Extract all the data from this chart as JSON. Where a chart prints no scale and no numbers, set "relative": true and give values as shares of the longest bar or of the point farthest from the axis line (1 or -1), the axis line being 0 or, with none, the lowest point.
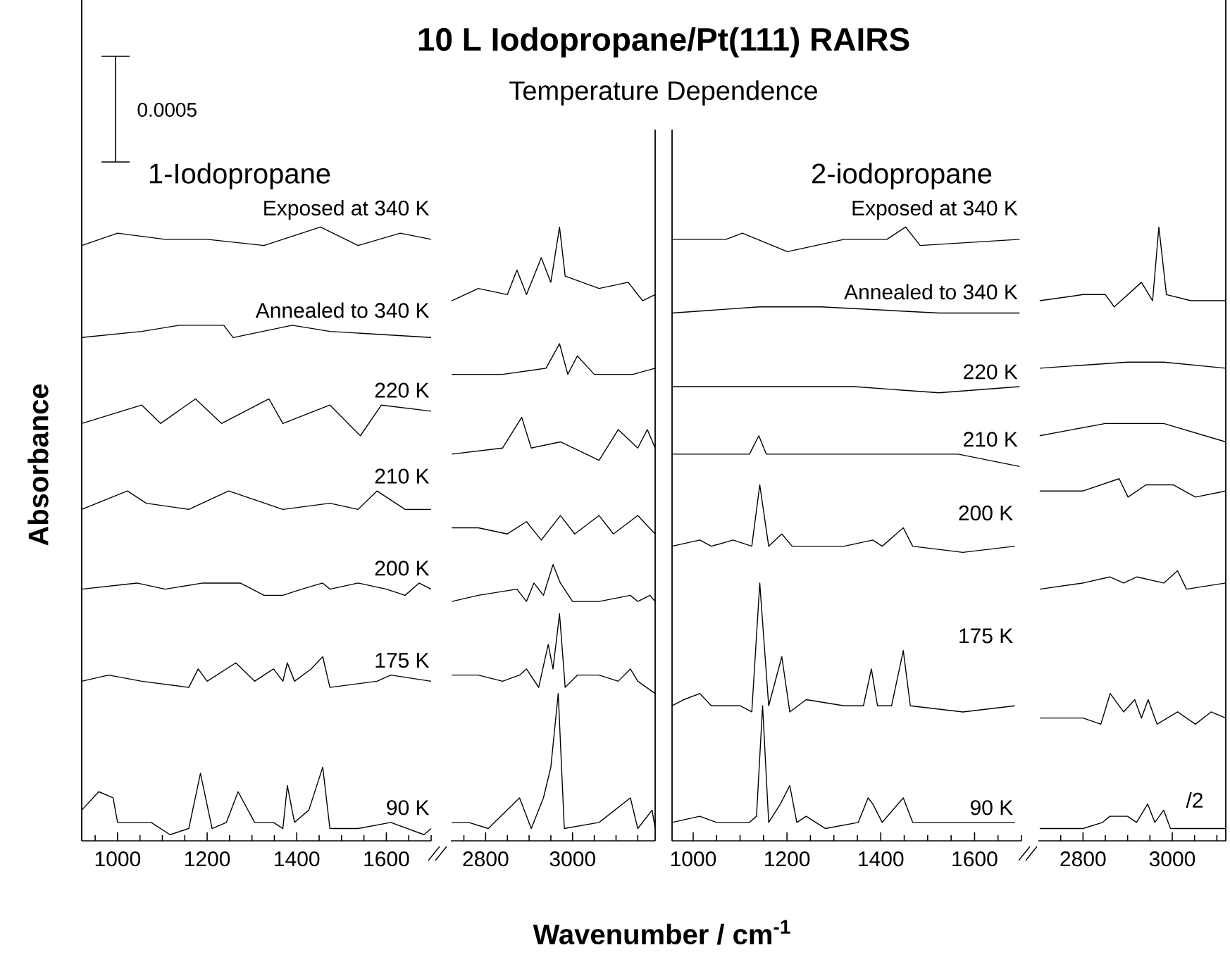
{
  "chart_data": [
    {
      "type": "line",
      "relative": true,
      "title": "10 L Iodopropane/Pt(111) RAIRS",
      "ylabel": "Absorbance",
      "xlabel": "Wavenumber / cm$^{-1}$",
      "annotations": [
        "0.0005",
        "1-Iodopropane",
        "Temperature Dependence"
      ],
      "xlim": [
        920,
        1700
      ],
      "xticks": [
        {
          "value": 950,
          "label": null
        },
        1000,
        {
          "value": 1050,
          "label": null
        },
        {
          "value": 1100,
          "label": null
        },
        {
          "value": 1150,
          "label": null
        },
        1200,
        {
          "value": 1250,
          "label": null
        },
        {
          "value": 1300,
          "label": null
        },
        {
          "value": 1350,
          "label": null
        },
        1400,
        {
          "value": 1450,
          "label": null
        },
        {
          "value": 1500,
          "label": null
        },
        {
          "value": 1550,
          "label": null
        },
        1600,
        {
          "value": 1650,
          "label": null
        },
        {
          "value": 1700,
          "label": null
        }
      ],
      "series": [
        {
          "name": "Exposed at 340 K",
          "color": "#000000",
          "x": [
            920,
            1000,
            1106,
            1200,
            1327,
            1453,
            1537,
            1631,
            1700
          ],
          "values": [
            0.97,
            0.99,
            0.98,
            0.98,
            0.97,
            1.0,
            0.97,
            0.99,
            0.98
          ]
        },
        {
          "name": "Annealed to 340 K",
          "color": "#000000",
          "x": [
            920,
            1054,
            1138,
            1237,
            1258,
            1390,
            1474,
            1700
          ],
          "values": [
            0.82,
            0.83,
            0.84,
            0.84,
            0.82,
            0.84,
            0.83,
            0.82
          ]
        },
        {
          "name": "220 K",
          "color": "#000000",
          "x": [
            920,
            1054,
            1096,
            1174,
            1232,
            1338,
            1369,
            1474,
            1542,
            1589,
            1700
          ],
          "values": [
            0.68,
            0.71,
            0.68,
            0.72,
            0.68,
            0.72,
            0.68,
            0.71,
            0.66,
            0.71,
            0.7
          ]
        },
        {
          "name": "210 K",
          "color": "#000000",
          "x": [
            920,
            1022,
            1064,
            1159,
            1248,
            1369,
            1474,
            1537,
            1579,
            1642,
            1700
          ],
          "values": [
            0.54,
            0.57,
            0.55,
            0.54,
            0.57,
            0.54,
            0.55,
            0.54,
            0.57,
            0.54,
            0.54
          ]
        },
        {
          "name": "200 K",
          "color": "#000000",
          "x": [
            920,
            1043,
            1106,
            1190,
            1274,
            1327,
            1369,
            1411,
            1458,
            1474,
            1537,
            1600,
            1642,
            1673,
            1700
          ],
          "values": [
            0.41,
            0.42,
            0.41,
            0.42,
            0.42,
            0.4,
            0.4,
            0.41,
            0.42,
            0.41,
            0.42,
            0.41,
            0.4,
            0.42,
            0.41
          ]
        },
        {
          "name": "175 K",
          "color": "#000000",
          "x": [
            920,
            980,
            1054,
            1159,
            1180,
            1200,
            1264,
            1306,
            1348,
            1369,
            1379,
            1395,
            1432,
            1458,
            1474,
            1579,
            1610,
            1700
          ],
          "values": [
            0.26,
            0.27,
            0.26,
            0.25,
            0.28,
            0.26,
            0.29,
            0.26,
            0.28,
            0.26,
            0.29,
            0.26,
            0.28,
            0.3,
            0.25,
            0.26,
            0.27,
            0.26
          ]
        },
        {
          "name": "90 K",
          "color": "#000000",
          "x": [
            920,
            958,
            990,
            1000,
            1040,
            1075,
            1117,
            1159,
            1185,
            1211,
            1243,
            1269,
            1306,
            1348,
            1369,
            1379,
            1395,
            1427,
            1458,
            1474,
            1537,
            1610,
            1684,
            1700
          ],
          "values": [
            0.05,
            0.08,
            0.07,
            0.03,
            0.03,
            0.03,
            0.01,
            0.02,
            0.11,
            0.02,
            0.03,
            0.08,
            0.03,
            0.03,
            0.02,
            0.09,
            0.03,
            0.05,
            0.12,
            0.02,
            0.02,
            0.03,
            0.01,
            0.02
          ]
        }
      ]
    },
    {
      "type": "line",
      "relative": true,
      "xlim": [
        2720,
        3190
      ],
      "xticks": [
        {
          "value": 2750,
          "label": null
        },
        2800,
        {
          "value": 2850,
          "label": null
        },
        {
          "value": 2900,
          "label": null
        },
        {
          "value": 2950,
          "label": null
        },
        3000,
        {
          "value": 3050,
          "label": null
        },
        {
          "value": 3100,
          "label": null
        },
        {
          "value": 3150,
          "label": null
        }
      ],
      "series": [
        {
          "color": "#000000",
          "x": [
            2722,
            2783,
            2850,
            2872,
            2894,
            2928,
            2950,
            2970,
            2983,
            3061,
            3128,
            3161,
            3190
          ],
          "values": [
            0.88,
            0.9,
            0.89,
            0.93,
            0.89,
            0.95,
            0.91,
            1.0,
            0.92,
            0.9,
            0.91,
            0.88,
            0.89
          ]
        },
        {
          "color": "#000000",
          "x": [
            2722,
            2839,
            2939,
            2970,
            2989,
            3011,
            3050,
            3139,
            3190
          ],
          "values": [
            0.76,
            0.76,
            0.77,
            0.81,
            0.76,
            0.79,
            0.76,
            0.76,
            0.77
          ]
        },
        {
          "color": "#000000",
          "x": [
            2722,
            2839,
            2883,
            2905,
            2972,
            3061,
            3105,
            3150,
            3172,
            3190
          ],
          "values": [
            0.63,
            0.64,
            0.69,
            0.64,
            0.65,
            0.62,
            0.67,
            0.64,
            0.67,
            0.64
          ]
        },
        {
          "color": "#000000",
          "x": [
            2722,
            2783,
            2850,
            2894,
            2928,
            2972,
            3005,
            3061,
            3094,
            3150,
            3190
          ],
          "values": [
            0.51,
            0.51,
            0.5,
            0.52,
            0.49,
            0.53,
            0.5,
            0.53,
            0.5,
            0.53,
            0.5
          ]
        },
        {
          "color": "#000000",
          "x": [
            2722,
            2783,
            2872,
            2894,
            2911,
            2933,
            2955,
            2972,
            3000,
            3061,
            3133,
            3150,
            3178,
            3190
          ],
          "values": [
            0.39,
            0.4,
            0.41,
            0.39,
            0.42,
            0.4,
            0.45,
            0.42,
            0.39,
            0.39,
            0.4,
            0.39,
            0.4,
            0.39
          ]
        },
        {
          "color": "#000000",
          "x": [
            2722,
            2783,
            2839,
            2878,
            2894,
            2922,
            2944,
            2955,
            2970,
            2983,
            3011,
            3061,
            3105,
            3133,
            3150,
            3190
          ],
          "values": [
            0.27,
            0.27,
            0.26,
            0.27,
            0.28,
            0.25,
            0.32,
            0.28,
            0.37,
            0.25,
            0.27,
            0.27,
            0.26,
            0.28,
            0.26,
            0.24
          ]
        },
        {
          "color": "#000000",
          "x": [
            2722,
            2761,
            2806,
            2878,
            2905,
            2933,
            2950,
            2967,
            2981,
            3061,
            3133,
            3150,
            3183,
            3190
          ],
          "values": [
            0.03,
            0.03,
            0.02,
            0.07,
            0.02,
            0.07,
            0.12,
            0.24,
            0.02,
            0.03,
            0.07,
            0.02,
            0.05,
            0.02
          ]
        }
      ]
    },
    {
      "type": "line",
      "relative": true,
      "annotations": [
        "2-iodopropane"
      ],
      "xlim": [
        955,
        1700
      ],
      "xticks": [
        1000,
        {
          "value": 1050,
          "label": null
        },
        {
          "value": 1100,
          "label": null
        },
        {
          "value": 1150,
          "label": null
        },
        1200,
        {
          "value": 1250,
          "label": null
        },
        {
          "value": 1300,
          "label": null
        },
        {
          "value": 1350,
          "label": null
        },
        1400,
        {
          "value": 1450,
          "label": null
        },
        {
          "value": 1500,
          "label": null
        },
        {
          "value": 1550,
          "label": null
        },
        1600,
        {
          "value": 1650,
          "label": null
        },
        {
          "value": 1700,
          "label": null
        }
      ],
      "series": [
        {
          "name": "Exposed at 340 K",
          "color": "#000000",
          "x": [
            955,
            1070,
            1105,
            1201,
            1322,
            1413,
            1453,
            1484,
            1696
          ],
          "values": [
            0.98,
            0.98,
            0.99,
            0.96,
            0.98,
            0.98,
            1.0,
            0.97,
            0.98
          ]
        },
        {
          "name": "Annealed to 340 K",
          "color": "#000000",
          "x": [
            955,
            1141,
            1272,
            1524,
            1696
          ],
          "values": [
            0.86,
            0.87,
            0.87,
            0.86,
            0.86
          ]
        },
        {
          "name": "220 K",
          "color": "#000000",
          "x": [
            955,
            1020,
            1181,
            1343,
            1524,
            1696
          ],
          "values": [
            0.74,
            0.74,
            0.74,
            0.74,
            0.73,
            0.74
          ]
        },
        {
          "name": "210 K",
          "color": "#000000",
          "x": [
            955,
            1050,
            1120,
            1140,
            1156,
            1322,
            1423,
            1565,
            1696
          ],
          "values": [
            0.63,
            0.63,
            0.63,
            0.66,
            0.63,
            0.63,
            0.63,
            0.63,
            0.61
          ]
        },
        {
          "name": "200 K",
          "color": "#000000",
          "x": [
            955,
            1014,
            1039,
            1085,
            1125,
            1142,
            1161,
            1189,
            1211,
            1322,
            1383,
            1403,
            1448,
            1468,
            1575,
            1686
          ],
          "values": [
            0.48,
            0.49,
            0.48,
            0.49,
            0.48,
            0.58,
            0.48,
            0.5,
            0.48,
            0.48,
            0.49,
            0.48,
            0.51,
            0.48,
            0.47,
            0.48
          ]
        },
        {
          "name": "175 K",
          "color": "#000000",
          "x": [
            955,
            980,
            1014,
            1039,
            1100,
            1125,
            1142,
            1161,
            1189,
            1206,
            1241,
            1322,
            1363,
            1380,
            1393,
            1423,
            1448,
            1463,
            1575,
            1686
          ],
          "values": [
            0.22,
            0.23,
            0.24,
            0.22,
            0.22,
            0.21,
            0.42,
            0.22,
            0.3,
            0.21,
            0.23,
            0.22,
            0.22,
            0.28,
            0.22,
            0.22,
            0.31,
            0.22,
            0.21,
            0.22
          ]
        },
        {
          "name": "90 K",
          "color": "#000000",
          "x": [
            955,
            1014,
            1050,
            1120,
            1135,
            1148,
            1161,
            1186,
            1206,
            1221,
            1241,
            1282,
            1352,
            1373,
            1383,
            1403,
            1448,
            1468,
            1524,
            1625,
            1686
          ],
          "values": [
            0.03,
            0.04,
            0.03,
            0.03,
            0.04,
            0.22,
            0.03,
            0.06,
            0.09,
            0.03,
            0.04,
            0.02,
            0.03,
            0.07,
            0.06,
            0.03,
            0.07,
            0.03,
            0.03,
            0.03,
            0.03
          ]
        }
      ]
    },
    {
      "type": "line",
      "relative": true,
      "annotations": [
        "/2"
      ],
      "xlim": [
        2700,
        3120
      ],
      "xticks": [
        {
          "value": 2750,
          "label": null
        },
        2800,
        {
          "value": 2850,
          "label": null
        },
        {
          "value": 2900,
          "label": null
        },
        {
          "value": 2950,
          "label": null
        },
        3000,
        {
          "value": 3050,
          "label": null
        },
        {
          "value": 3100,
          "label": null
        }
      ],
      "series": [
        {
          "color": "#000000",
          "x": [
            2703,
            2800,
            2850,
            2870,
            2931,
            2956,
            2970,
            2987,
            3042,
            3120
          ],
          "values": [
            0.88,
            0.89,
            0.89,
            0.87,
            0.91,
            0.88,
            1.0,
            0.89,
            0.88,
            0.88
          ]
        },
        {
          "color": "#000000",
          "x": [
            2703,
            2900,
            2981,
            3120
          ],
          "values": [
            0.77,
            0.78,
            0.78,
            0.77
          ]
        },
        {
          "color": "#000000",
          "x": [
            2703,
            2850,
            2891,
            2981,
            3120
          ],
          "values": [
            0.66,
            0.68,
            0.68,
            0.68,
            0.65
          ]
        },
        {
          "color": "#000000",
          "x": [
            2703,
            2800,
            2881,
            2901,
            2941,
            3002,
            3052,
            3120
          ],
          "values": [
            0.57,
            0.57,
            0.59,
            0.56,
            0.58,
            0.58,
            0.56,
            0.57
          ]
        },
        {
          "color": "#000000",
          "x": [
            2703,
            2800,
            2860,
            2891,
            2921,
            2981,
            3012,
            3032,
            3120
          ],
          "values": [
            0.41,
            0.42,
            0.43,
            0.42,
            0.43,
            0.42,
            0.44,
            0.41,
            0.42
          ]
        },
        {
          "color": "#000000",
          "x": [
            2703,
            2800,
            2840,
            2861,
            2891,
            2916,
            2931,
            2946,
            2966,
            3012,
            3052,
            3087,
            3120
          ],
          "values": [
            0.2,
            0.2,
            0.19,
            0.24,
            0.21,
            0.23,
            0.2,
            0.23,
            0.19,
            0.21,
            0.19,
            0.21,
            0.2
          ]
        },
        {
          "color": "#000000",
          "x": [
            2703,
            2749,
            2800,
            2844,
            2860,
            2900,
            2920,
            2945,
            2961,
            2981,
            2996,
            3052,
            3120
          ],
          "values": [
            0.02,
            0.02,
            0.02,
            0.03,
            0.04,
            0.04,
            0.03,
            0.06,
            0.03,
            0.05,
            0.02,
            0.02,
            0.02
          ]
        }
      ]
    }
  ]
}
